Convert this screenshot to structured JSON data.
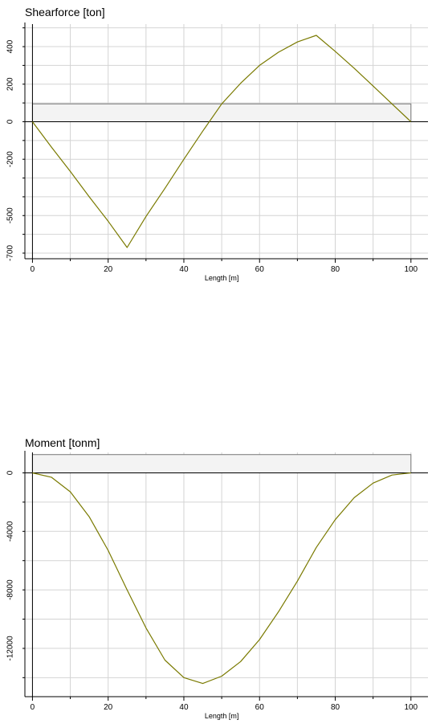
{
  "chart_data": [
    {
      "type": "line",
      "title": "Shearforce [ton]",
      "xlabel": "Length [m]",
      "ylabel": "",
      "xlim": [
        -2,
        104.5
      ],
      "ylim": [
        -730,
        520
      ],
      "x_ticks": [
        0,
        20,
        40,
        60,
        80,
        100
      ],
      "x_tick_labels": [
        "0",
        "20",
        "40",
        "60",
        "80",
        "100"
      ],
      "y_ticks": [
        400,
        200,
        0,
        -200,
        -500,
        -700
      ],
      "y_tick_labels": [
        "400",
        "200",
        "0",
        "-200",
        "-500",
        "-700"
      ],
      "grid": true,
      "series_color": "#7a7a00",
      "envelope": {
        "x": [
          0,
          100
        ],
        "y": [
          0,
          95
        ]
      },
      "series": [
        {
          "x": [
            0,
            5,
            10,
            15,
            20,
            25,
            30,
            35,
            40,
            45,
            50,
            55,
            60,
            65,
            70,
            75,
            80,
            85,
            90,
            95,
            100
          ],
          "values": [
            0,
            -135,
            -265,
            -400,
            -530,
            -670,
            -505,
            -355,
            -200,
            -50,
            95,
            205,
            300,
            370,
            425,
            460,
            375,
            285,
            190,
            95,
            0
          ]
        }
      ]
    },
    {
      "type": "line",
      "title": "Moment [tonm]",
      "xlabel": "Length [m]",
      "ylabel": "",
      "xlim": [
        -2,
        104.5
      ],
      "ylim": [
        -15300,
        1400
      ],
      "x_ticks": [
        0,
        20,
        40,
        60,
        80,
        100
      ],
      "x_tick_labels": [
        "0",
        "20",
        "40",
        "60",
        "80",
        "100"
      ],
      "y_ticks": [
        0,
        -4000,
        -8000,
        -12000
      ],
      "y_tick_labels": [
        "0",
        "-4000",
        "-8000",
        "-12000"
      ],
      "grid": true,
      "series_color": "#7a7a00",
      "envelope": {
        "x": [
          0,
          100
        ],
        "y": [
          0,
          1250
        ]
      },
      "series": [
        {
          "x": [
            0,
            5,
            10,
            15,
            20,
            25,
            30,
            35,
            40,
            45,
            50,
            55,
            60,
            65,
            70,
            75,
            80,
            85,
            90,
            95,
            100
          ],
          "values": [
            0,
            -300,
            -1300,
            -3000,
            -5300,
            -8000,
            -10600,
            -12800,
            -14000,
            -14400,
            -13900,
            -12900,
            -11400,
            -9500,
            -7400,
            -5100,
            -3200,
            -1700,
            -700,
            -150,
            0
          ]
        }
      ]
    }
  ]
}
